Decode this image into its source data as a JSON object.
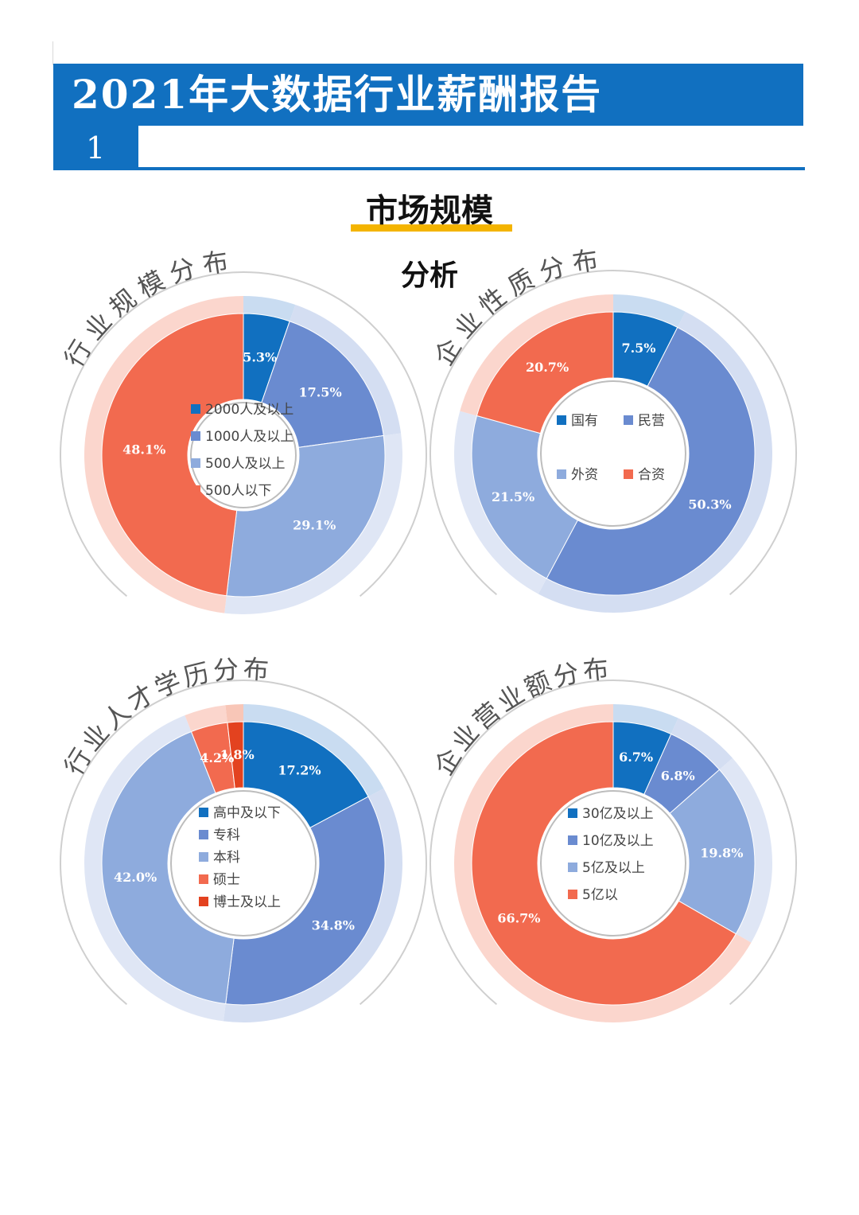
{
  "header": {
    "title": "2021年大数据行业薪酬报告",
    "page_num": "1"
  },
  "section": {
    "title": "市场规模",
    "subtitle": "分析"
  },
  "colors": {
    "brand_blue": "#1170c0",
    "accent_yellow": "#f4b400",
    "series": [
      "#1170c0",
      "#6a8bd0",
      "#8eabdd",
      "#f26a4f",
      "#e3421f"
    ]
  },
  "chart_data": [
    {
      "type": "pie",
      "title": "行业规模分布",
      "categories": [
        "2000人及以上",
        "1000人及以上",
        "500人及以上",
        "500人以下"
      ],
      "values": [
        5.3,
        17.5,
        29.1,
        48.1
      ],
      "labels": [
        "5.3%",
        "17.5%",
        "29.1%",
        "48.1%"
      ]
    },
    {
      "type": "pie",
      "title": "企业性质分布",
      "categories": [
        "国有",
        "民营",
        "外资",
        "合资"
      ],
      "values": [
        7.5,
        50.3,
        21.5,
        20.7
      ],
      "labels": [
        "7.5%",
        "50.3%",
        "21.5%",
        "20.7%"
      ]
    },
    {
      "type": "pie",
      "title": "行业人才学历分布",
      "categories": [
        "高中及以下",
        "专科",
        "本科",
        "硕士",
        "博士及以上"
      ],
      "values": [
        17.2,
        34.8,
        42.0,
        4.2,
        1.8
      ],
      "labels": [
        "17.2%",
        "34.8%",
        "42.0%",
        "4.2%",
        "1.8%"
      ]
    },
    {
      "type": "pie",
      "title": "企业营业额分布",
      "categories": [
        "30亿及以上",
        "10亿及以上",
        "5亿及以上",
        "5亿以"
      ],
      "values": [
        6.7,
        6.8,
        19.8,
        66.7
      ],
      "labels": [
        "6.7%",
        "6.8%",
        "19.8%",
        "66.7%"
      ]
    }
  ]
}
